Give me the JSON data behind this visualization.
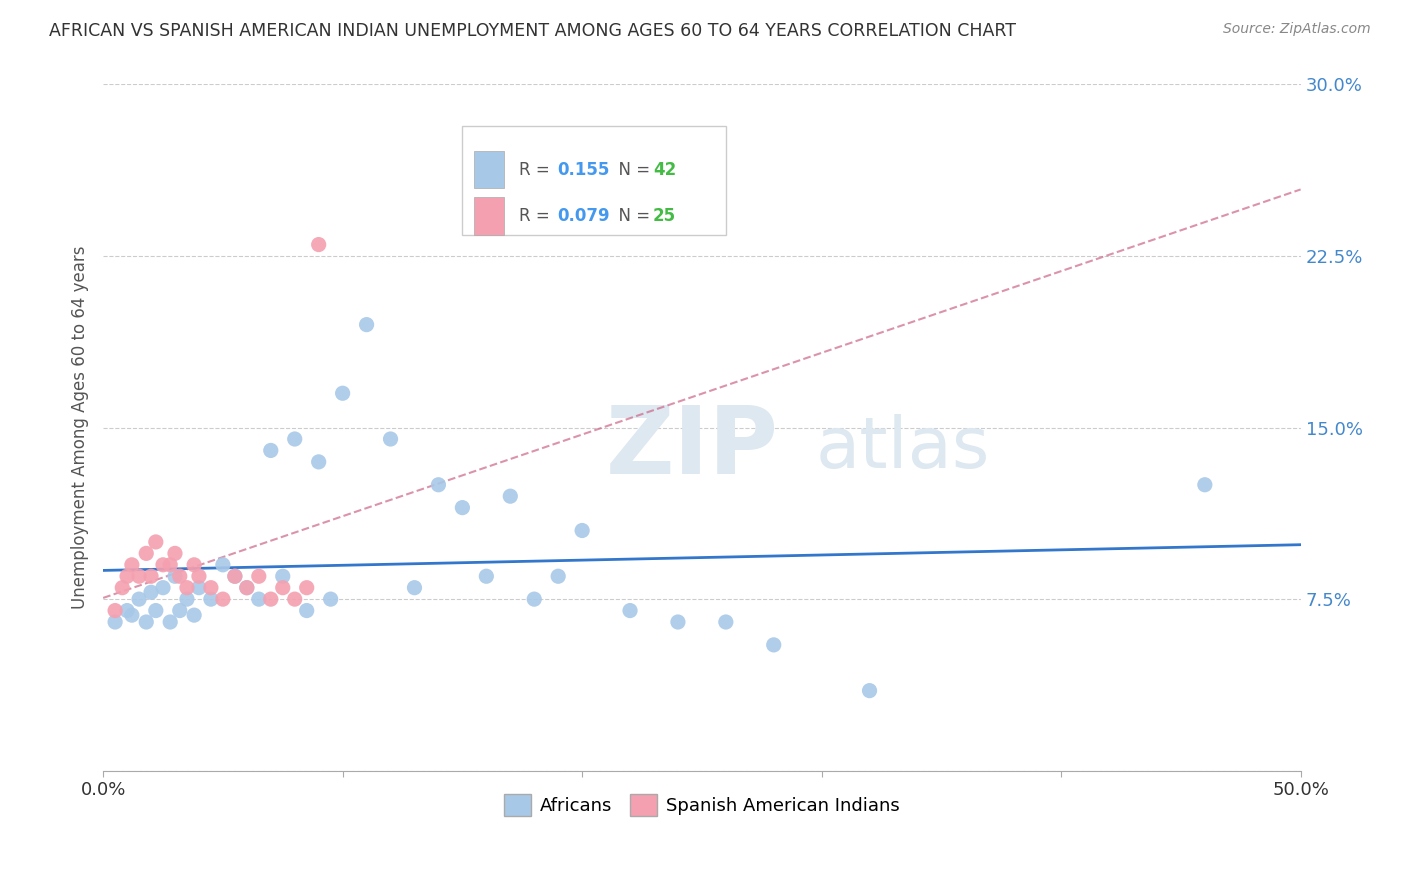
{
  "title": "AFRICAN VS SPANISH AMERICAN INDIAN UNEMPLOYMENT AMONG AGES 60 TO 64 YEARS CORRELATION CHART",
  "source": "Source: ZipAtlas.com",
  "ylabel": "Unemployment Among Ages 60 to 64 years",
  "xlim": [
    0,
    50
  ],
  "ylim": [
    0,
    30
  ],
  "yticks": [
    0,
    7.5,
    15.0,
    22.5,
    30.0
  ],
  "ytick_labels": [
    "",
    "7.5%",
    "15.0%",
    "22.5%",
    "30.0%"
  ],
  "watermark_zip": "ZIP",
  "watermark_atlas": "atlas",
  "legend_r_color": "#555555",
  "legend_val_color": "#4499ee",
  "legend_n_color": "#555555",
  "legend_nval_color": "#44bb44",
  "african_color": "#a8c8e8",
  "spanish_color": "#f4a0b0",
  "trend_african_color": "#3377cc",
  "trend_spanish_color": "#cc6688",
  "africans_x": [
    0.5,
    1.0,
    1.2,
    1.5,
    1.8,
    2.0,
    2.2,
    2.5,
    2.8,
    3.0,
    3.2,
    3.5,
    3.8,
    4.0,
    4.5,
    5.0,
    5.5,
    6.0,
    6.5,
    7.0,
    7.5,
    8.0,
    8.5,
    9.0,
    9.5,
    10.0,
    11.0,
    12.0,
    13.0,
    14.0,
    15.0,
    16.0,
    17.0,
    18.0,
    19.0,
    20.0,
    22.0,
    24.0,
    26.0,
    28.0,
    32.0,
    46.0
  ],
  "africans_y": [
    6.5,
    7.0,
    6.8,
    7.5,
    6.5,
    7.8,
    7.0,
    8.0,
    6.5,
    8.5,
    7.0,
    7.5,
    6.8,
    8.0,
    7.5,
    9.0,
    8.5,
    8.0,
    7.5,
    14.0,
    8.5,
    14.5,
    7.0,
    13.5,
    7.5,
    16.5,
    19.5,
    14.5,
    8.0,
    12.5,
    11.5,
    8.5,
    12.0,
    7.5,
    8.5,
    10.5,
    7.0,
    6.5,
    6.5,
    5.5,
    3.5,
    12.5
  ],
  "spanish_x": [
    0.5,
    0.8,
    1.0,
    1.2,
    1.5,
    1.8,
    2.0,
    2.2,
    2.5,
    2.8,
    3.0,
    3.2,
    3.5,
    3.8,
    4.0,
    4.5,
    5.0,
    5.5,
    6.0,
    6.5,
    7.0,
    7.5,
    8.0,
    8.5,
    9.0
  ],
  "spanish_y": [
    7.0,
    8.0,
    8.5,
    9.0,
    8.5,
    9.5,
    8.5,
    10.0,
    9.0,
    9.0,
    9.5,
    8.5,
    8.0,
    9.0,
    8.5,
    8.0,
    7.5,
    8.5,
    8.0,
    8.5,
    7.5,
    8.0,
    7.5,
    8.0,
    23.0
  ]
}
